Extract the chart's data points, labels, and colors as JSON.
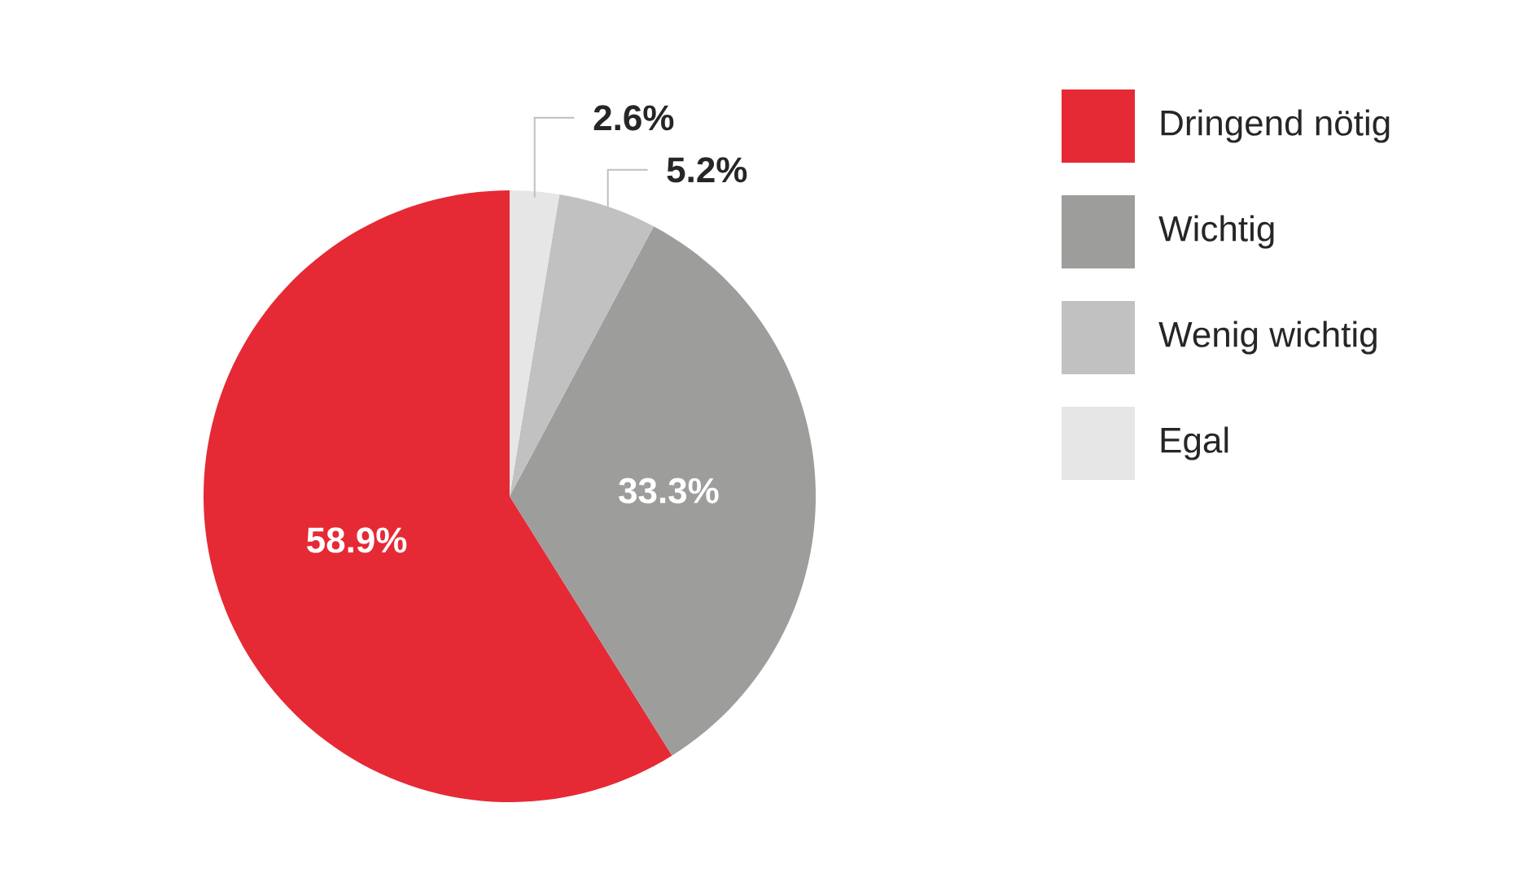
{
  "chart_data": {
    "type": "pie",
    "categories": [
      "Dringend nötig",
      "Wichtig",
      "Wenig wichtig",
      "Egal"
    ],
    "values": [
      58.9,
      33.3,
      5.2,
      2.6
    ],
    "colors": [
      "#e52a35",
      "#9d9d9c",
      "#c1c1c1",
      "#e6e6e6"
    ],
    "value_labels": [
      "58.9%",
      "33.3%",
      "5.2%",
      "2.6%"
    ],
    "legend": "top right"
  }
}
